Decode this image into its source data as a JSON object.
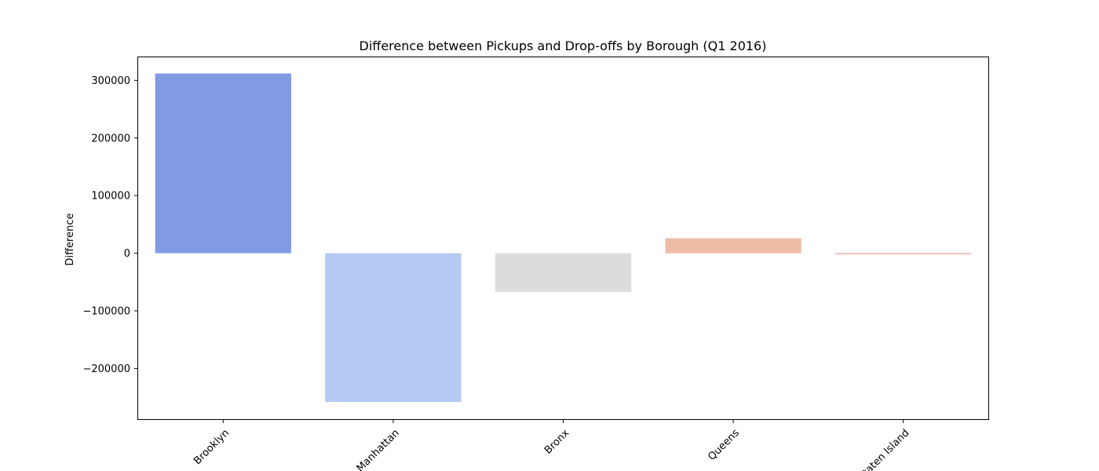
{
  "chart_data": {
    "type": "bar",
    "title": "Difference between Pickups and Drop-offs by Borough (Q1 2016)",
    "xlabel": "",
    "ylabel": "Difference",
    "categories": [
      "Brooklyn",
      "Manhattan",
      "Bronx",
      "Queens",
      "Staten Island"
    ],
    "values": [
      312000,
      -258000,
      -67000,
      26000,
      -800
    ],
    "colors": [
      "#829bE4",
      "#b5c9f3",
      "#dcdcdc",
      "#eebda6",
      "#d98a72"
    ],
    "ylim": [
      -288000,
      340000
    ],
    "yticks": [
      300000,
      200000,
      100000,
      0,
      -100000,
      -200000
    ],
    "ytick_labels": [
      "300000",
      "200000",
      "100000",
      "0",
      "−100000",
      "−200000"
    ],
    "x_tick_rotation": 45,
    "grid": false
  }
}
